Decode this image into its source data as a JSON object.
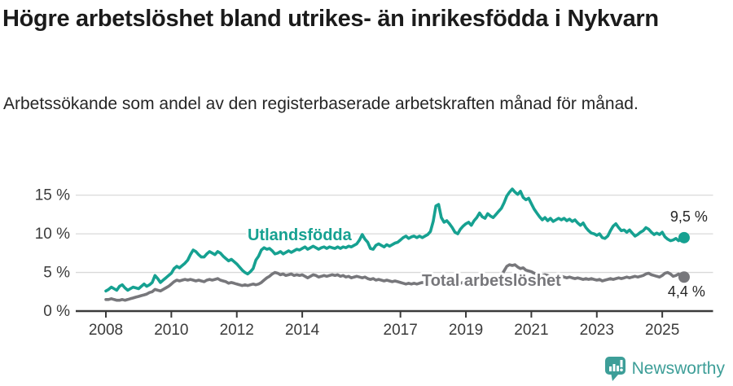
{
  "header": {
    "title": "Högre arbetslöshet bland utrikes- än inrikesfödda i Nykvarn",
    "subtitle": "Arbetssökande som andel av den registerbaserade arbetskraften månad för månad."
  },
  "footer": {
    "brand": "Newsworthy",
    "logo_icon": "speech-bubble-bar-chart-exclamation"
  },
  "colors": {
    "series_foreign_born": "#16a191",
    "series_total": "#77777b",
    "grid": "#d9d9d9",
    "axis": "#3b3b3b",
    "brand": "#3d9e98",
    "background": "#ffffff"
  },
  "chart_data": {
    "type": "line",
    "title": "Högre arbetslöshet bland utrikes- än inrikesfödda i Nykvarn",
    "subtitle": "Arbetssökande som andel av den registerbaserade arbetskraften månad för månad.",
    "xlabel": "",
    "ylabel": "",
    "unit": "%",
    "grid": "horizontal",
    "x_start": {
      "year": 2008,
      "month": 1
    },
    "x_step_months": 1,
    "xlim": [
      2007.1,
      2026.5
    ],
    "ylim": [
      0,
      16.8
    ],
    "x_ticks": [
      {
        "year": 2008,
        "label": "2008"
      },
      {
        "year": 2010,
        "label": "2010"
      },
      {
        "year": 2012,
        "label": "2012"
      },
      {
        "year": 2014,
        "label": "2014"
      },
      {
        "year": 2017,
        "label": "2017"
      },
      {
        "year": 2019,
        "label": "2019"
      },
      {
        "year": 2021,
        "label": "2021"
      },
      {
        "year": 2023,
        "label": "2023"
      },
      {
        "year": 2025,
        "label": "2025"
      }
    ],
    "y_ticks": [
      {
        "value": 0,
        "label": "0 %"
      },
      {
        "value": 5,
        "label": "5 %"
      },
      {
        "value": 10,
        "label": "10 %"
      },
      {
        "value": 15,
        "label": "15 %"
      }
    ],
    "series": [
      {
        "name": "Total arbetslöshet",
        "color": "#77777b",
        "end_label": "4,4 %",
        "end_value": 4.4,
        "label_anchor": {
          "year": 2019.78,
          "value": 4.0
        },
        "values": [
          1.5,
          1.5,
          1.6,
          1.5,
          1.4,
          1.4,
          1.5,
          1.4,
          1.5,
          1.6,
          1.7,
          1.8,
          1.9,
          2.0,
          2.1,
          2.2,
          2.4,
          2.5,
          2.8,
          2.7,
          2.6,
          2.8,
          3.0,
          3.2,
          3.5,
          3.8,
          4.0,
          3.9,
          4.0,
          4.1,
          4.0,
          4.1,
          4.0,
          3.9,
          4.0,
          3.9,
          3.8,
          4.0,
          4.1,
          4.0,
          4.1,
          4.2,
          4.0,
          3.9,
          3.8,
          3.6,
          3.7,
          3.6,
          3.5,
          3.4,
          3.3,
          3.4,
          3.3,
          3.4,
          3.5,
          3.4,
          3.5,
          3.7,
          4.0,
          4.3,
          4.5,
          4.8,
          5.0,
          4.9,
          4.7,
          4.8,
          4.6,
          4.7,
          4.8,
          4.6,
          4.7,
          4.6,
          4.7,
          4.5,
          4.3,
          4.5,
          4.7,
          4.6,
          4.4,
          4.5,
          4.6,
          4.5,
          4.6,
          4.7,
          4.6,
          4.7,
          4.5,
          4.6,
          4.4,
          4.5,
          4.3,
          4.4,
          4.5,
          4.4,
          4.3,
          4.4,
          4.2,
          4.1,
          4.2,
          4.0,
          4.1,
          4.0,
          3.9,
          4.0,
          3.9,
          3.8,
          3.9,
          3.8,
          3.7,
          3.6,
          3.5,
          3.6,
          3.5,
          3.6,
          3.5,
          3.6,
          3.7,
          3.6,
          3.7,
          3.8,
          3.9,
          4.0,
          3.8,
          3.7,
          3.6,
          3.7,
          3.6,
          3.5,
          3.6,
          3.5,
          3.6,
          3.7,
          3.8,
          3.9,
          3.8,
          3.9,
          4.0,
          3.9,
          3.8,
          3.9,
          3.8,
          3.9,
          4.0,
          4.1,
          4.3,
          4.6,
          5.2,
          5.8,
          6.0,
          5.9,
          6.0,
          5.7,
          5.5,
          5.6,
          5.3,
          5.2,
          5.1,
          4.9,
          4.8,
          4.7,
          4.6,
          4.7,
          4.6,
          4.5,
          4.4,
          4.5,
          4.4,
          4.5,
          4.4,
          4.3,
          4.4,
          4.3,
          4.2,
          4.3,
          4.2,
          4.1,
          4.2,
          4.1,
          4.2,
          4.1,
          4.0,
          4.1,
          3.9,
          4.0,
          4.1,
          4.2,
          4.1,
          4.2,
          4.3,
          4.2,
          4.3,
          4.4,
          4.3,
          4.4,
          4.5,
          4.4,
          4.5,
          4.6,
          4.8,
          4.9,
          4.7,
          4.6,
          4.5,
          4.4,
          4.6,
          4.9,
          5.0,
          4.8,
          4.5,
          4.6,
          4.8,
          4.5,
          4.4
        ]
      },
      {
        "name": "Utlandsfödda",
        "color": "#16a191",
        "end_label": "9,5 %",
        "end_value": 9.5,
        "label_anchor": {
          "year": 2013.92,
          "value": 9.9
        },
        "values": [
          2.6,
          2.8,
          3.1,
          2.9,
          2.7,
          3.2,
          3.4,
          3.0,
          2.7,
          2.9,
          3.1,
          3.0,
          2.9,
          3.2,
          3.5,
          3.2,
          3.4,
          3.7,
          4.6,
          4.2,
          3.7,
          4.0,
          4.3,
          4.6,
          4.9,
          5.5,
          5.8,
          5.6,
          5.9,
          6.2,
          6.6,
          7.3,
          7.9,
          7.7,
          7.3,
          7.0,
          7.0,
          7.4,
          7.7,
          7.5,
          7.3,
          7.7,
          7.5,
          7.1,
          6.8,
          6.5,
          6.7,
          6.4,
          6.1,
          5.7,
          5.3,
          5.0,
          4.8,
          5.1,
          5.5,
          6.6,
          7.1,
          7.9,
          8.2,
          8.0,
          8.1,
          7.8,
          7.4,
          7.5,
          7.7,
          7.4,
          7.6,
          7.8,
          7.6,
          7.8,
          8.0,
          7.9,
          8.1,
          8.3,
          8.0,
          8.2,
          8.4,
          8.2,
          8.0,
          8.2,
          8.3,
          8.1,
          8.3,
          8.2,
          8.1,
          8.3,
          8.1,
          8.3,
          8.2,
          8.4,
          8.3,
          8.5,
          8.7,
          9.2,
          9.9,
          9.3,
          8.9,
          8.1,
          8.0,
          8.5,
          8.7,
          8.5,
          8.3,
          8.6,
          8.4,
          8.6,
          8.8,
          8.9,
          9.2,
          9.5,
          9.7,
          9.4,
          9.6,
          9.7,
          9.5,
          9.7,
          9.5,
          9.7,
          9.9,
          10.3,
          11.6,
          13.6,
          13.8,
          12.1,
          11.5,
          11.7,
          11.3,
          10.8,
          10.2,
          10.0,
          10.6,
          11.0,
          11.3,
          11.5,
          11.1,
          11.7,
          12.1,
          12.7,
          12.2,
          12.0,
          12.6,
          12.3,
          12.1,
          12.5,
          12.9,
          13.3,
          14.0,
          14.9,
          15.4,
          15.8,
          15.4,
          15.1,
          15.5,
          14.7,
          14.4,
          14.6,
          13.9,
          13.2,
          12.7,
          12.2,
          11.8,
          12.1,
          11.7,
          12.0,
          11.6,
          11.8,
          12.0,
          11.8,
          12.0,
          11.7,
          11.9,
          11.6,
          11.8,
          11.4,
          11.1,
          11.4,
          10.8,
          10.4,
          10.1,
          10.0,
          9.8,
          10.0,
          9.5,
          9.4,
          9.7,
          10.4,
          11.0,
          11.3,
          10.8,
          10.4,
          10.5,
          10.2,
          10.5,
          10.1,
          9.7,
          9.9,
          10.2,
          10.4,
          10.8,
          10.6,
          10.2,
          9.9,
          10.1,
          9.9,
          10.2,
          9.6,
          9.3,
          9.1,
          9.2,
          9.4,
          9.1,
          9.3,
          9.5
        ]
      }
    ]
  }
}
